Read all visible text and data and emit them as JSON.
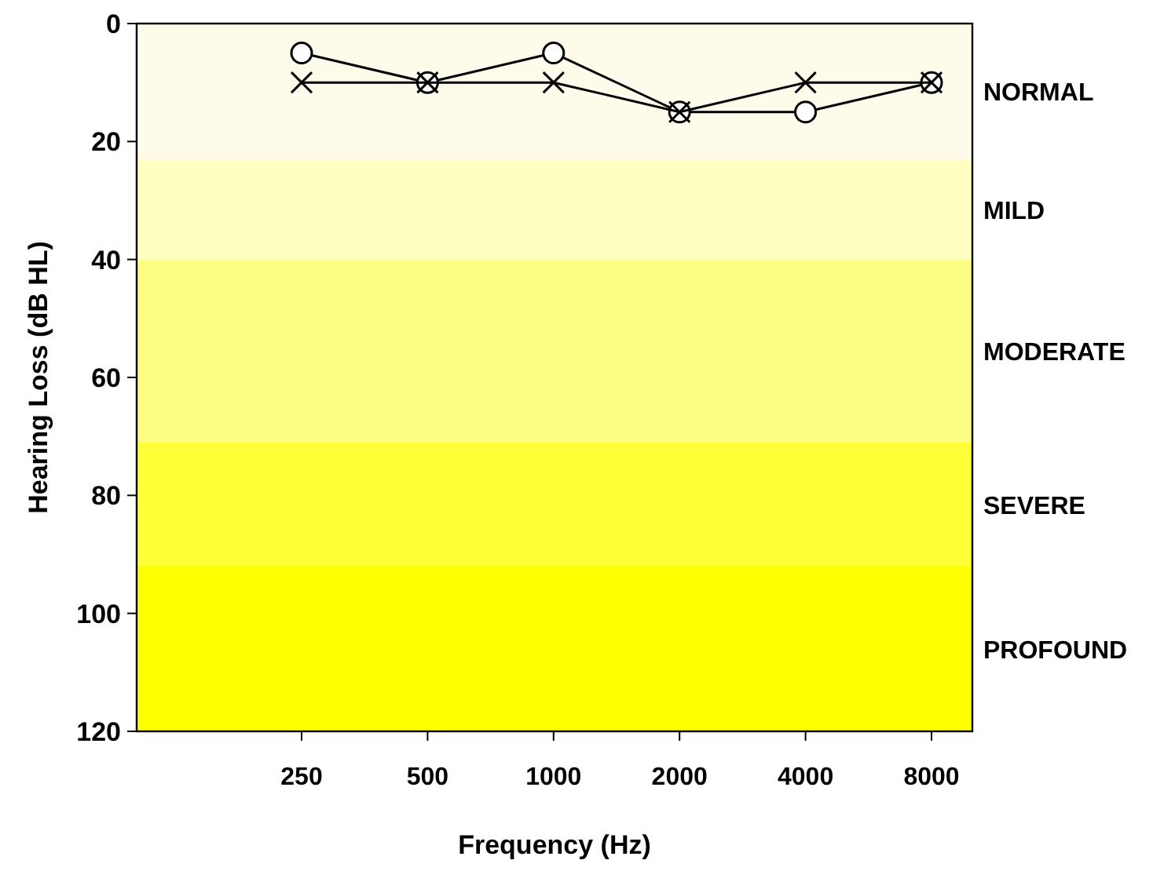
{
  "chart_data": {
    "type": "line",
    "xlabel": "Frequency (Hz)",
    "ylabel": "Hearing Loss (dB HL)",
    "categories": [
      "250",
      "500",
      "1000",
      "2000",
      "4000",
      "8000"
    ],
    "series": [
      {
        "color": "#000000",
        "marker": "circle",
        "values": [
          5,
          10,
          5,
          15,
          15,
          10
        ]
      },
      {
        "color": "#000000",
        "marker": "cross",
        "values": [
          10,
          10,
          10,
          15,
          10,
          10
        ]
      }
    ],
    "ylim": [
      120,
      0
    ],
    "yticks": [
      0,
      20,
      40,
      60,
      80,
      100,
      120
    ],
    "bands": [
      {
        "axis": "y",
        "from": 0,
        "to": 23,
        "label": "NORMAL",
        "color": "#fffbea"
      },
      {
        "axis": "y",
        "from": 23,
        "to": 40,
        "label": "MILD",
        "color": "#ffffc2"
      },
      {
        "axis": "y",
        "from": 40,
        "to": 71,
        "label": "MODERATE",
        "color": "#fdfd86"
      },
      {
        "axis": "y",
        "from": 71,
        "to": 92,
        "label": "SEVERE",
        "color": "#ffff38"
      },
      {
        "axis": "y",
        "from": 92,
        "to": 120,
        "label": "PROFOUND",
        "color": "#ffff00"
      }
    ],
    "grid": false,
    "line_style": "solid"
  }
}
